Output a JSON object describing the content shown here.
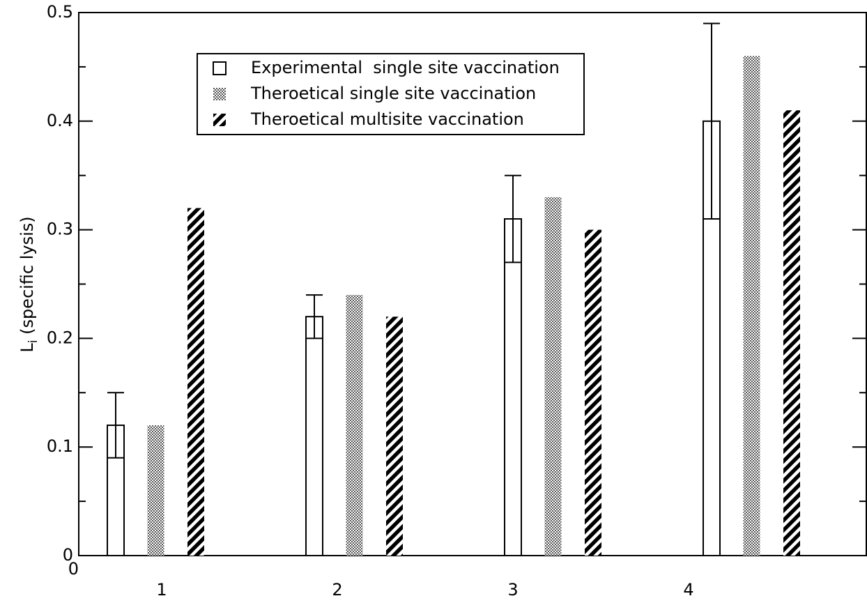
{
  "chart_data": {
    "type": "bar",
    "ylabel": [
      "L",
      "i",
      "(specific lysis)"
    ],
    "categories": [
      "1",
      "2",
      "3",
      "4"
    ],
    "x_origin_label": "0",
    "ylim": [
      0,
      0.5
    ],
    "yticks": [
      0,
      0.1,
      0.2,
      0.3,
      0.4,
      0.5
    ],
    "yminor_ticks": [
      0.05,
      0.15,
      0.25,
      0.35,
      0.45
    ],
    "series": [
      {
        "name": "Experimental  single site vaccination",
        "color": "#000000",
        "pattern": "none",
        "values": [
          0.12,
          0.22,
          0.31,
          0.4
        ],
        "errors": [
          0.03,
          0.02,
          0.04,
          0.09
        ]
      },
      {
        "name": "Theroetical single site vaccination",
        "color": "#000000",
        "pattern": "checker",
        "values": [
          0.12,
          0.24,
          0.33,
          0.46
        ]
      },
      {
        "name": "Theroetical multisite vaccination",
        "color": "#000000",
        "pattern": "stripes",
        "values": [
          0.32,
          0.22,
          0.3,
          0.41
        ]
      }
    ]
  }
}
